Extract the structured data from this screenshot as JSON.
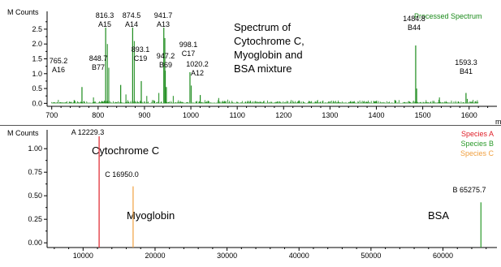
{
  "chart_data": [
    {
      "type": "bar",
      "title": "Spectrum of Cytochrome C, Myoglobin and BSA mixture",
      "title_lines": [
        "Spectrum of",
        "Cytochrome C,",
        "Myoglobin and",
        "BSA mixture"
      ],
      "ylabel": "M Counts",
      "xlabel": "m",
      "legend": [
        "Processed Spectrum"
      ],
      "legend_color": "#1a8a1a",
      "series_color": "#1a8a1a",
      "xlim": [
        690,
        1660
      ],
      "ylim": [
        -0.1,
        3.1
      ],
      "x_ticks": [
        700,
        800,
        900,
        1000,
        1100,
        1200,
        1300,
        1400,
        1500,
        1600
      ],
      "y_ticks": [
        {
          "v": 0.0,
          "t": "0.0"
        },
        {
          "v": 0.5,
          "t": "0.5"
        },
        {
          "v": 1.0,
          "t": "1.0"
        },
        {
          "v": 1.5,
          "t": "1.5"
        },
        {
          "v": 2.0,
          "t": "2.0"
        },
        {
          "v": 2.5,
          "t": "2.5"
        }
      ],
      "peaks": [
        {
          "x": 765.2,
          "y": 0.55,
          "label": "765.2",
          "ion": "A16"
        },
        {
          "x": 816.3,
          "y": 2.55,
          "label": "816.3",
          "ion": "A15"
        },
        {
          "x": 848.7,
          "y": 0.62,
          "label": "848.7",
          "ion": "B77"
        },
        {
          "x": 874.5,
          "y": 2.55,
          "label": "874.5",
          "ion": "A14"
        },
        {
          "x": 893.1,
          "y": 0.75,
          "label": "893.1",
          "ion": "C19"
        },
        {
          "x": 941.7,
          "y": 2.55,
          "label": "941.7",
          "ion": "A13"
        },
        {
          "x": 947.2,
          "y": 0.55,
          "label": "947.2",
          "ion": "B69"
        },
        {
          "x": 998.1,
          "y": 1.05,
          "label": "998.1",
          "ion": "C17"
        },
        {
          "x": 1020.2,
          "y": 0.28,
          "label": "1020.2",
          "ion": "A12"
        },
        {
          "x": 1484.8,
          "y": 1.95,
          "label": "1484.8",
          "ion": "B44"
        },
        {
          "x": 1593.3,
          "y": 0.35,
          "label": "1593.3",
          "ion": "B41"
        }
      ],
      "unlabeled_peaks": [
        {
          "x": 820,
          "y": 2.0
        },
        {
          "x": 823,
          "y": 1.2
        },
        {
          "x": 878,
          "y": 2.1
        },
        {
          "x": 944,
          "y": 2.2
        },
        {
          "x": 945,
          "y": 1.1
        },
        {
          "x": 1001,
          "y": 0.6
        },
        {
          "x": 1487,
          "y": 0.5
        },
        {
          "x": 1536,
          "y": 0.2
        },
        {
          "x": 1596,
          "y": 0.15
        },
        {
          "x": 860,
          "y": 0.3
        },
        {
          "x": 905,
          "y": 0.25
        },
        {
          "x": 931,
          "y": 0.35
        },
        {
          "x": 790,
          "y": 0.2
        },
        {
          "x": 962,
          "y": 0.25
        },
        {
          "x": 1060,
          "y": 0.18
        }
      ]
    },
    {
      "type": "bar",
      "ylabel": "M Counts",
      "legend": [
        {
          "name": "Species A",
          "color": "#e0202a"
        },
        {
          "name": "Species B",
          "color": "#2a9a2a"
        },
        {
          "name": "Species C",
          "color": "#f0a040"
        }
      ],
      "xlim": [
        5000,
        67500
      ],
      "ylim": [
        -0.05,
        1.2
      ],
      "x_ticks": [
        10000,
        20000,
        30000,
        40000,
        50000,
        60000
      ],
      "y_ticks": [
        {
          "v": 0.0,
          "t": "0.00"
        },
        {
          "v": 0.25,
          "t": "0.25"
        },
        {
          "v": 0.5,
          "t": "0.50"
        },
        {
          "v": 0.75,
          "t": "0.75"
        },
        {
          "v": 1.0,
          "t": "1.00"
        }
      ],
      "peaks": [
        {
          "x": 12229.3,
          "y": 1.22,
          "species": "A",
          "label": "A 12229.3",
          "color": "#e0202a"
        },
        {
          "x": 16950.0,
          "y": 0.6,
          "species": "C",
          "label": "C 16950.0",
          "color": "#f0a040"
        },
        {
          "x": 65275.7,
          "y": 0.43,
          "species": "B",
          "label": "B 65275.7",
          "color": "#2a9a2a"
        }
      ],
      "annotations": [
        "Cytochrome C",
        "Myoglobin",
        "BSA"
      ]
    }
  ]
}
